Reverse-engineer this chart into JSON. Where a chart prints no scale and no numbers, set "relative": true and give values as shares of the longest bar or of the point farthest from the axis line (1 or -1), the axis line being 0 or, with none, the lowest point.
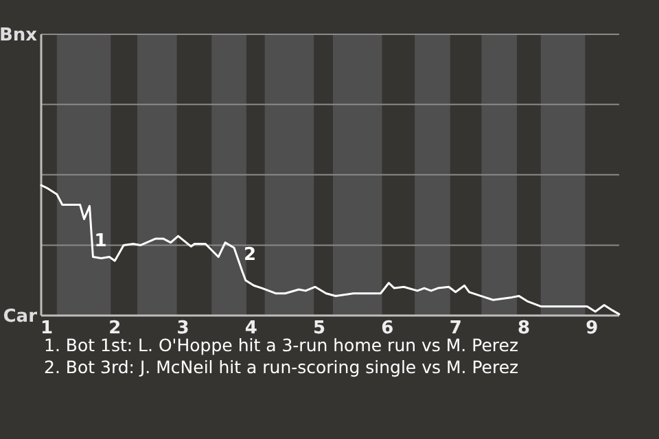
{
  "chart_data": {
    "type": "line",
    "relative": true,
    "x": [
      0.92,
      1.0,
      1.15,
      1.23,
      1.49,
      1.55,
      1.63,
      1.68,
      1.8,
      1.92,
      2.0,
      2.13,
      2.27,
      2.38,
      2.6,
      2.71,
      2.82,
      2.93,
      3.12,
      3.17,
      3.33,
      3.52,
      3.62,
      3.75,
      3.87,
      3.92,
      4.04,
      4.16,
      4.36,
      4.5,
      4.7,
      4.8,
      4.94,
      5.1,
      5.24,
      5.5,
      5.9,
      6.02,
      6.1,
      6.24,
      6.44,
      6.54,
      6.64,
      6.74,
      6.9,
      7.0,
      7.13,
      7.2,
      7.43,
      7.55,
      7.83,
      7.93,
      8.05,
      8.25,
      8.63,
      8.93,
      9.05,
      9.18,
      9.3,
      9.4
    ],
    "series": [
      {
        "color": "#ffffff",
        "values": [
          1.0,
          0.98,
          0.93,
          0.85,
          0.85,
          0.74,
          0.84,
          0.45,
          0.44,
          0.45,
          0.42,
          0.54,
          0.55,
          0.54,
          0.59,
          0.59,
          0.56,
          0.61,
          0.53,
          0.55,
          0.55,
          0.45,
          0.56,
          0.52,
          0.34,
          0.27,
          0.23,
          0.21,
          0.17,
          0.17,
          0.2,
          0.19,
          0.22,
          0.17,
          0.15,
          0.17,
          0.17,
          0.25,
          0.21,
          0.22,
          0.19,
          0.21,
          0.19,
          0.21,
          0.22,
          0.18,
          0.23,
          0.18,
          0.14,
          0.12,
          0.14,
          0.15,
          0.11,
          0.07,
          0.07,
          0.07,
          0.03,
          0.08,
          0.04,
          0.01
        ]
      }
    ],
    "xlim": [
      0.92,
      9.4
    ],
    "xticks": [
      1,
      2,
      3,
      4,
      5,
      6,
      7,
      8,
      9
    ],
    "ref_lines": [
      {
        "axis": "y",
        "value": 0.54,
        "color": "#8a8a8a"
      },
      {
        "axis": "y",
        "value": 1.08,
        "color": "#8a8a8a"
      },
      {
        "axis": "y",
        "value": 1.62,
        "color": "#8a8a8a"
      }
    ],
    "bands": [
      {
        "axis": "x",
        "from": 1.15,
        "to": 1.94,
        "color": "#4f4f4f"
      },
      {
        "axis": "x",
        "from": 2.33,
        "to": 2.91,
        "color": "#4f4f4f"
      },
      {
        "axis": "x",
        "from": 3.42,
        "to": 3.93,
        "color": "#4f4f4f"
      },
      {
        "axis": "x",
        "from": 4.2,
        "to": 4.92,
        "color": "#4f4f4f"
      },
      {
        "axis": "x",
        "from": 5.2,
        "to": 5.92,
        "color": "#4f4f4f"
      },
      {
        "axis": "x",
        "from": 6.4,
        "to": 6.92,
        "color": "#4f4f4f"
      },
      {
        "axis": "x",
        "from": 7.38,
        "to": 7.9,
        "color": "#4f4f4f"
      },
      {
        "axis": "x",
        "from": 8.25,
        "to": 8.9,
        "color": "#4f4f4f"
      }
    ],
    "annotations": [
      "Bnx",
      "Car",
      {
        "text": "1",
        "x": 1.68,
        "y": 0.45
      },
      {
        "text": "2",
        "x": 3.87,
        "y": 0.34
      },
      "1. Bot 1st: L. O'Hoppe hit a 3-run home run vs M. Perez",
      "2. Bot 3rd: J. McNeil hit a run-scoring single vs M. Perez"
    ],
    "marker": "none",
    "line_style": "solid"
  }
}
